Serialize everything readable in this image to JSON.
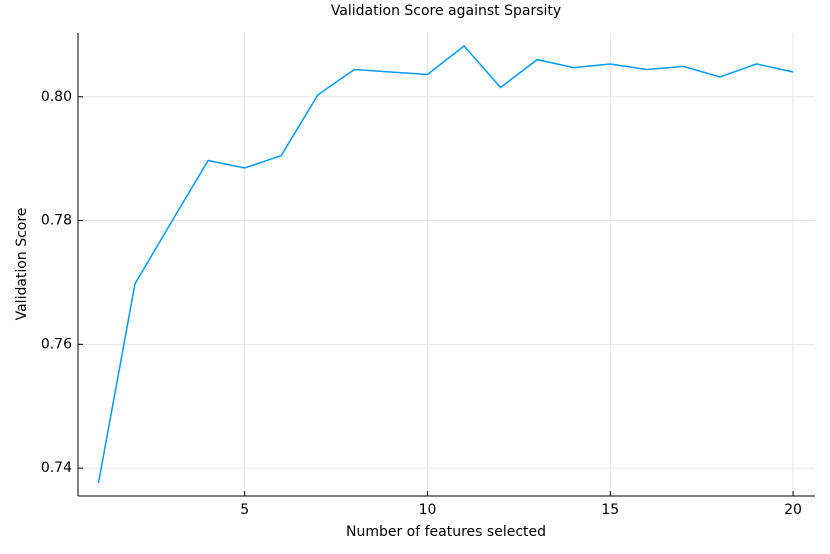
{
  "chart_data": {
    "type": "line",
    "title": "Validation Score against Sparsity",
    "x_label": "Number of features selected",
    "y_label": "Validation Score",
    "x": [
      1,
      2,
      3,
      4,
      5,
      6,
      7,
      8,
      9,
      10,
      11,
      12,
      13,
      14,
      15,
      16,
      17,
      18,
      19,
      20
    ],
    "series": [
      {
        "color": "#009af9",
        "values": [
          0.7376,
          0.7698,
          0.7798,
          0.7897,
          0.7885,
          0.7905,
          0.8003,
          0.8044,
          0.804,
          0.8036,
          0.8082,
          0.8015,
          0.806,
          0.8047,
          0.8053,
          0.8044,
          0.8049,
          0.8032,
          0.8053,
          0.804
        ]
      }
    ],
    "xlim": [
      0.44,
      20.6
    ],
    "ylim": [
      0.7355,
      0.8103
    ],
    "xticks": [
      5,
      10,
      15,
      20
    ],
    "yticks": [
      0.74,
      0.76,
      0.78,
      {
        "value": 0.8,
        "label": "0.80"
      }
    ],
    "grid": true
  }
}
